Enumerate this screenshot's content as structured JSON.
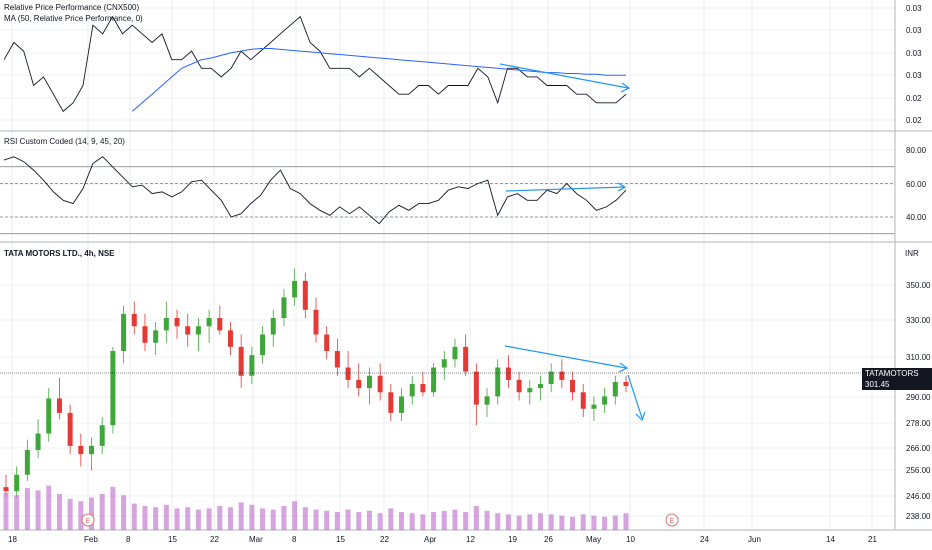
{
  "legends": {
    "rpp": "Relative Price Performance (CNX500)",
    "ma": "MA (50, Relative Price Performance, 0)",
    "rsi": "RSI Custom Coded (14, 9, 45, 20)",
    "main": "TATA MOTORS LTD., 4h, NSE"
  },
  "price_tag": {
    "symbol": "TATAMOTORS",
    "value": "301.45",
    "bg": "#131722"
  },
  "currency": "INR",
  "colors": {
    "up": "#26a69a",
    "candle_up": "#3fa63a",
    "candle_down": "#e53935",
    "ma": "#2962ff",
    "arrow": "#2196f3",
    "volume": "#ba68c8",
    "line": "#131722",
    "grid": "#e0e3eb"
  },
  "chart_data": [
    {
      "type": "line",
      "name_key": "rpp",
      "y_ticks": [
        "0.03",
        "0.03",
        "0.03",
        "0.03",
        "0.02",
        "0.02"
      ],
      "series": [
        {
          "name": "Relative Price Performance (CNX500)",
          "values": [
            0.027,
            0.029,
            0.028,
            0.024,
            0.025,
            0.023,
            0.021,
            0.022,
            0.024,
            0.031,
            0.03,
            0.032,
            0.03,
            0.031,
            0.03,
            0.029,
            0.03,
            0.027,
            0.027,
            0.028,
            0.026,
            0.026,
            0.025,
            0.026,
            0.028,
            0.027,
            0.028,
            0.029,
            0.03,
            0.031,
            0.032,
            0.029,
            0.028,
            0.026,
            0.026,
            0.026,
            0.025,
            0.026,
            0.025,
            0.024,
            0.023,
            0.023,
            0.024,
            0.024,
            0.023,
            0.024,
            0.024,
            0.024,
            0.026,
            0.025,
            0.022,
            0.026,
            0.026,
            0.025,
            0.025,
            0.024,
            0.024,
            0.024,
            0.023,
            0.023,
            0.022,
            0.022,
            0.022,
            0.023
          ]
        },
        {
          "name": "MA (50, Relative Price Performance, 0)",
          "values": [
            null,
            null,
            null,
            null,
            null,
            null,
            null,
            null,
            null,
            null,
            null,
            null,
            null,
            0.021,
            0.022,
            0.023,
            0.024,
            0.025,
            0.026,
            0.0265,
            0.027,
            0.0272,
            0.0275,
            0.0278,
            0.028,
            0.0282,
            0.0283,
            0.0283,
            0.0282,
            0.0281,
            0.028,
            0.0279,
            0.0278,
            0.0277,
            0.0276,
            0.0275,
            0.0274,
            0.0273,
            0.0272,
            0.0271,
            0.027,
            0.0269,
            0.0268,
            0.0267,
            0.0266,
            0.0265,
            0.0264,
            0.0263,
            0.0262,
            0.0261,
            0.026,
            0.0259,
            0.0258,
            0.0257,
            0.0256,
            0.0255,
            0.0255,
            0.0254,
            0.0254,
            0.0253,
            0.0253,
            0.0252,
            0.0252,
            0.0252
          ]
        }
      ]
    },
    {
      "type": "line",
      "name_key": "rsi",
      "y_ticks": [
        "80.00",
        "60.00",
        "40.00"
      ],
      "levels": [
        70,
        60,
        40,
        30
      ],
      "series": [
        {
          "name": "RSI Custom Coded (14, 9, 45, 20)",
          "values": [
            74,
            76,
            73,
            68,
            62,
            55,
            50,
            48,
            57,
            72,
            76,
            70,
            64,
            58,
            59,
            54,
            55,
            52,
            55,
            61,
            62,
            56,
            50,
            40,
            42,
            48,
            53,
            62,
            68,
            57,
            54,
            48,
            44,
            41,
            46,
            42,
            46,
            41,
            36,
            43,
            47,
            44,
            48,
            48,
            50,
            56,
            58,
            57,
            60,
            62,
            41,
            52,
            54,
            50,
            50,
            56,
            54,
            60,
            54,
            50,
            44,
            46,
            50,
            56
          ]
        }
      ]
    },
    {
      "type": "candlestick",
      "name_key": "main",
      "y_ticks": [
        "350.00",
        "330.00",
        "310.00",
        "290.00",
        "278.00",
        "266.00",
        "256.00",
        "246.00",
        "238.00"
      ],
      "ylim": [
        232,
        360
      ],
      "x_ticks": [
        "18",
        "Feb",
        "8",
        "15",
        "22",
        "Mar",
        "8",
        "15",
        "22",
        "Apr",
        "12",
        "19",
        "26",
        "May",
        "10",
        "24",
        "Jun",
        "14",
        "21"
      ],
      "ohlc": [
        [
          252,
          258,
          248,
          250
        ],
        [
          250,
          262,
          247,
          258
        ],
        [
          258,
          275,
          255,
          270
        ],
        [
          270,
          285,
          266,
          278
        ],
        [
          278,
          300,
          274,
          295
        ],
        [
          295,
          305,
          285,
          288
        ],
        [
          288,
          292,
          268,
          272
        ],
        [
          272,
          278,
          262,
          268
        ],
        [
          268,
          276,
          260,
          272
        ],
        [
          272,
          286,
          268,
          282
        ],
        [
          282,
          320,
          278,
          318
        ],
        [
          318,
          340,
          312,
          336
        ],
        [
          336,
          342,
          326,
          330
        ],
        [
          330,
          336,
          318,
          322
        ],
        [
          322,
          332,
          316,
          328
        ],
        [
          328,
          342,
          322,
          334
        ],
        [
          334,
          338,
          324,
          330
        ],
        [
          330,
          336,
          320,
          326
        ],
        [
          326,
          334,
          318,
          330
        ],
        [
          330,
          338,
          322,
          334
        ],
        [
          334,
          340,
          326,
          328
        ],
        [
          328,
          332,
          316,
          320
        ],
        [
          320,
          326,
          300,
          306
        ],
        [
          306,
          320,
          302,
          316
        ],
        [
          316,
          330,
          312,
          326
        ],
        [
          326,
          338,
          320,
          334
        ],
        [
          334,
          348,
          330,
          344
        ],
        [
          344,
          358,
          340,
          352
        ],
        [
          352,
          356,
          334,
          338
        ],
        [
          338,
          344,
          322,
          326
        ],
        [
          326,
          330,
          314,
          318
        ],
        [
          318,
          324,
          306,
          310
        ],
        [
          310,
          318,
          300,
          304
        ],
        [
          304,
          312,
          296,
          300
        ],
        [
          300,
          310,
          292,
          306
        ],
        [
          306,
          312,
          294,
          298
        ],
        [
          298,
          302,
          284,
          288
        ],
        [
          288,
          300,
          284,
          296
        ],
        [
          296,
          306,
          292,
          302
        ],
        [
          302,
          308,
          296,
          298
        ],
        [
          298,
          312,
          296,
          310
        ],
        [
          310,
          318,
          304,
          314
        ],
        [
          314,
          324,
          310,
          320
        ],
        [
          320,
          326,
          306,
          308
        ],
        [
          308,
          312,
          282,
          292
        ],
        [
          292,
          300,
          286,
          296
        ],
        [
          296,
          314,
          292,
          310
        ],
        [
          310,
          316,
          300,
          304
        ],
        [
          304,
          308,
          294,
          298
        ],
        [
          298,
          304,
          292,
          300
        ],
        [
          300,
          306,
          294,
          302
        ],
        [
          302,
          312,
          298,
          308
        ],
        [
          308,
          314,
          300,
          304
        ],
        [
          304,
          308,
          294,
          298
        ],
        [
          298,
          302,
          286,
          290
        ],
        [
          290,
          296,
          284,
          292
        ],
        [
          292,
          300,
          288,
          296
        ],
        [
          296,
          306,
          292,
          303
        ],
        [
          303,
          306,
          298,
          301
        ]
      ],
      "volume": [
        62,
        58,
        70,
        66,
        74,
        60,
        52,
        48,
        54,
        60,
        72,
        58,
        44,
        40,
        38,
        42,
        36,
        38,
        34,
        36,
        40,
        38,
        46,
        42,
        36,
        34,
        40,
        48,
        38,
        34,
        32,
        30,
        34,
        30,
        32,
        28,
        36,
        30,
        28,
        26,
        30,
        32,
        34,
        30,
        40,
        32,
        28,
        26,
        24,
        26,
        28,
        26,
        24,
        22,
        26,
        24,
        22,
        24,
        28
      ]
    }
  ],
  "events": [
    {
      "label": "E"
    },
    {
      "label": "E"
    }
  ]
}
